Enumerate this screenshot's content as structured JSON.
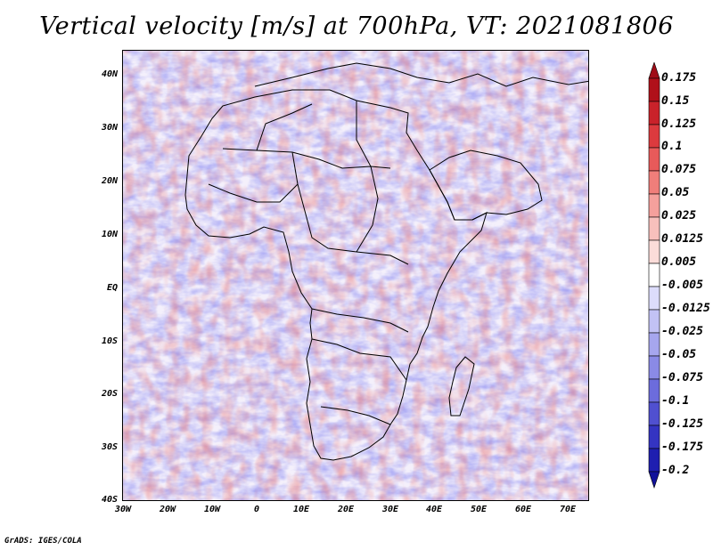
{
  "title": "Vertical velocity [m/s] at 700hPa, VT: 2021081806",
  "lat_labels": [
    "40N",
    "30N",
    "20N",
    "10N",
    "EQ",
    "10S",
    "20S",
    "30S",
    "40S"
  ],
  "lon_labels": [
    "30W",
    "20W",
    "10W",
    "0",
    "10E",
    "20E",
    "30E",
    "40E",
    "50E",
    "60E",
    "70E"
  ],
  "colorbar": {
    "labels": [
      "0.175",
      "0.15",
      "0.125",
      "0.1",
      "0.075",
      "0.05",
      "0.025",
      "0.0125",
      "0.005",
      "-0.005",
      "-0.0125",
      "-0.025",
      "-0.05",
      "-0.075",
      "-0.1",
      "-0.125",
      "-0.175",
      "-0.2"
    ],
    "colors": [
      "#b0101a",
      "#c9222a",
      "#dc3a3e",
      "#e85a5a",
      "#f07e7a",
      "#f5a09c",
      "#f8c0bc",
      "#fbdcd9",
      "#ffffff",
      "#dcdcfb",
      "#c2c2f5",
      "#a6a6ee",
      "#8a8ae6",
      "#6c6cdc",
      "#5050d0",
      "#3434c2",
      "#1e1eb0"
    ],
    "top_arrow_color": "#a00d18",
    "bottom_arrow_color": "#12129a"
  },
  "credit": "GrADS: IGES/COLA",
  "map_colors": {
    "ascent": "#e87878",
    "descent": "#7f7ff0",
    "boundary": "#000000"
  }
}
